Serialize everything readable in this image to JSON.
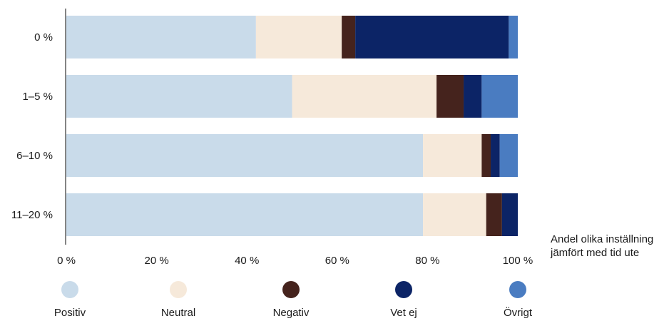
{
  "chart_data": {
    "type": "bar",
    "orientation": "horizontal",
    "stacked": true,
    "categories": [
      "0 %",
      "1–5 %",
      "6–10 %",
      "11–20 %"
    ],
    "series": [
      {
        "name": "Positiv",
        "color": "#c9dbea",
        "values": [
          42,
          50,
          79,
          79
        ]
      },
      {
        "name": "Neutral",
        "color": "#f6e9da",
        "values": [
          19,
          32,
          13,
          14
        ]
      },
      {
        "name": "Negativ",
        "color": "#45231d",
        "values": [
          3,
          6,
          2,
          3.5
        ]
      },
      {
        "name": "Vet ej",
        "color": "#0c2466",
        "values": [
          34,
          4,
          2,
          3.5
        ]
      },
      {
        "name": "Övrigt",
        "color": "#4a7cc1",
        "values": [
          2,
          8,
          4,
          0
        ]
      }
    ],
    "xlim": [
      0,
      100
    ],
    "x_ticks": [
      "0 %",
      "20 %",
      "40 %",
      "60 %",
      "80 %",
      "100 %"
    ],
    "axis_title": [
      "Andel olika inställning",
      "jämfört med tid ute"
    ],
    "legend_position": "bottom",
    "grid": false
  }
}
